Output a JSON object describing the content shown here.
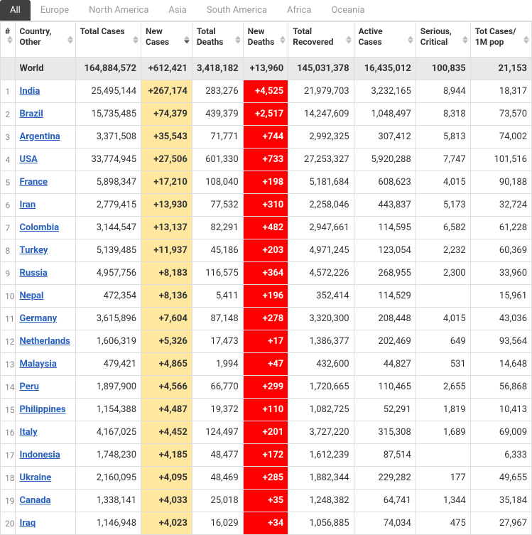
{
  "tabs": [
    "All",
    "Europe",
    "North America",
    "Asia",
    "South America",
    "Africa",
    "Oceania"
  ],
  "active_tab_index": 0,
  "sort_icon": {
    "inactive_color": "#bbbbbb",
    "active_color": "#555555"
  },
  "columns": [
    {
      "key": "idx",
      "label": "#",
      "sortable": true,
      "sorted": "none",
      "class": "col-idx"
    },
    {
      "key": "country",
      "label": "Country, Other",
      "sortable": true,
      "sorted": "none",
      "class": "col-country"
    },
    {
      "key": "total_cases",
      "label": "Total Cases",
      "sortable": true,
      "sorted": "none",
      "class": "col-tc"
    },
    {
      "key": "new_cases",
      "label": "New Cases",
      "sortable": true,
      "sorted": "desc",
      "class": "col-nc"
    },
    {
      "key": "total_deaths",
      "label": "Total Deaths",
      "sortable": true,
      "sorted": "none",
      "class": "col-td"
    },
    {
      "key": "new_deaths",
      "label": "New Deaths",
      "sortable": true,
      "sorted": "none",
      "class": "col-nd"
    },
    {
      "key": "total_recovered",
      "label": "Total Recovered",
      "sortable": true,
      "sorted": "none",
      "class": "col-tr"
    },
    {
      "key": "active",
      "label": "Active Cases",
      "sortable": true,
      "sorted": "none",
      "class": "col-ac"
    },
    {
      "key": "serious",
      "label": "Serious, Critical",
      "sortable": true,
      "sorted": "none",
      "class": "col-sc"
    },
    {
      "key": "per_m",
      "label": "Tot Cases/ 1M pop",
      "sortable": true,
      "sorted": "none",
      "class": "col-tpm"
    }
  ],
  "world_row": {
    "country": "World",
    "total_cases": "164,884,572",
    "new_cases": "+612,421",
    "total_deaths": "3,418,182",
    "new_deaths": "+13,960",
    "total_recovered": "145,031,378",
    "active": "16,435,012",
    "serious": "100,835",
    "per_m": "21,153"
  },
  "rows": [
    {
      "idx": "1",
      "country": "India",
      "total_cases": "25,495,144",
      "new_cases": "+267,174",
      "total_deaths": "283,276",
      "new_deaths": "+4,525",
      "total_recovered": "21,979,703",
      "active": "3,232,165",
      "serious": "8,944",
      "per_m": "18,317"
    },
    {
      "idx": "2",
      "country": "Brazil",
      "total_cases": "15,735,485",
      "new_cases": "+74,379",
      "total_deaths": "439,379",
      "new_deaths": "+2,517",
      "total_recovered": "14,247,609",
      "active": "1,048,497",
      "serious": "8,318",
      "per_m": "73,570"
    },
    {
      "idx": "3",
      "country": "Argentina",
      "total_cases": "3,371,508",
      "new_cases": "+35,543",
      "total_deaths": "71,771",
      "new_deaths": "+744",
      "total_recovered": "2,992,325",
      "active": "307,412",
      "serious": "5,813",
      "per_m": "74,002"
    },
    {
      "idx": "4",
      "country": "USA",
      "total_cases": "33,774,945",
      "new_cases": "+27,506",
      "total_deaths": "601,330",
      "new_deaths": "+733",
      "total_recovered": "27,253,327",
      "active": "5,920,288",
      "serious": "7,747",
      "per_m": "101,516"
    },
    {
      "idx": "5",
      "country": "France",
      "total_cases": "5,898,347",
      "new_cases": "+17,210",
      "total_deaths": "108,040",
      "new_deaths": "+198",
      "total_recovered": "5,181,684",
      "active": "608,623",
      "serious": "4,015",
      "per_m": "90,188"
    },
    {
      "idx": "6",
      "country": "Iran",
      "total_cases": "2,779,415",
      "new_cases": "+13,930",
      "total_deaths": "77,532",
      "new_deaths": "+310",
      "total_recovered": "2,258,046",
      "active": "443,837",
      "serious": "5,173",
      "per_m": "32,724"
    },
    {
      "idx": "7",
      "country": "Colombia",
      "total_cases": "3,144,547",
      "new_cases": "+13,137",
      "total_deaths": "82,291",
      "new_deaths": "+482",
      "total_recovered": "2,947,661",
      "active": "114,595",
      "serious": "6,582",
      "per_m": "61,228"
    },
    {
      "idx": "8",
      "country": "Turkey",
      "total_cases": "5,139,485",
      "new_cases": "+11,937",
      "total_deaths": "45,186",
      "new_deaths": "+203",
      "total_recovered": "4,971,245",
      "active": "123,054",
      "serious": "2,232",
      "per_m": "60,369"
    },
    {
      "idx": "9",
      "country": "Russia",
      "total_cases": "4,957,756",
      "new_cases": "+8,183",
      "total_deaths": "116,575",
      "new_deaths": "+364",
      "total_recovered": "4,572,226",
      "active": "268,955",
      "serious": "2,300",
      "per_m": "33,960"
    },
    {
      "idx": "10",
      "country": "Nepal",
      "total_cases": "472,354",
      "new_cases": "+8,136",
      "total_deaths": "5,411",
      "new_deaths": "+196",
      "total_recovered": "352,414",
      "active": "114,529",
      "serious": "",
      "per_m": "15,961"
    },
    {
      "idx": "11",
      "country": "Germany",
      "total_cases": "3,615,896",
      "new_cases": "+7,604",
      "total_deaths": "87,148",
      "new_deaths": "+278",
      "total_recovered": "3,320,300",
      "active": "208,448",
      "serious": "4,015",
      "per_m": "43,036"
    },
    {
      "idx": "12",
      "country": "Netherlands",
      "total_cases": "1,606,319",
      "new_cases": "+5,326",
      "total_deaths": "17,473",
      "new_deaths": "+17",
      "total_recovered": "1,386,377",
      "active": "202,469",
      "serious": "649",
      "per_m": "93,564"
    },
    {
      "idx": "13",
      "country": "Malaysia",
      "total_cases": "479,421",
      "new_cases": "+4,865",
      "total_deaths": "1,994",
      "new_deaths": "+47",
      "total_recovered": "432,600",
      "active": "44,827",
      "serious": "531",
      "per_m": "14,648"
    },
    {
      "idx": "14",
      "country": "Peru",
      "total_cases": "1,897,900",
      "new_cases": "+4,566",
      "total_deaths": "66,770",
      "new_deaths": "+299",
      "total_recovered": "1,720,665",
      "active": "110,465",
      "serious": "2,655",
      "per_m": "56,868"
    },
    {
      "idx": "15",
      "country": "Philippines",
      "total_cases": "1,154,388",
      "new_cases": "+4,487",
      "total_deaths": "19,372",
      "new_deaths": "+110",
      "total_recovered": "1,082,725",
      "active": "52,291",
      "serious": "1,819",
      "per_m": "10,413"
    },
    {
      "idx": "16",
      "country": "Italy",
      "total_cases": "4,167,025",
      "new_cases": "+4,452",
      "total_deaths": "124,497",
      "new_deaths": "+201",
      "total_recovered": "3,727,220",
      "active": "315,308",
      "serious": "1,689",
      "per_m": "69,009"
    },
    {
      "idx": "17",
      "country": "Indonesia",
      "total_cases": "1,748,230",
      "new_cases": "+4,185",
      "total_deaths": "48,477",
      "new_deaths": "+172",
      "total_recovered": "1,612,239",
      "active": "87,514",
      "serious": "",
      "per_m": "6,333"
    },
    {
      "idx": "18",
      "country": "Ukraine",
      "total_cases": "2,160,095",
      "new_cases": "+4,095",
      "total_deaths": "48,469",
      "new_deaths": "+285",
      "total_recovered": "1,882,344",
      "active": "229,282",
      "serious": "177",
      "per_m": "49,655"
    },
    {
      "idx": "19",
      "country": "Canada",
      "total_cases": "1,338,141",
      "new_cases": "+4,033",
      "total_deaths": "25,018",
      "new_deaths": "+35",
      "total_recovered": "1,248,382",
      "active": "64,741",
      "serious": "1,344",
      "per_m": "35,184"
    },
    {
      "idx": "20",
      "country": "Iraq",
      "total_cases": "1,146,948",
      "new_cases": "+4,023",
      "total_deaths": "16,029",
      "new_deaths": "+34",
      "total_recovered": "1,056,885",
      "active": "74,034",
      "serious": "475",
      "per_m": "27,967"
    }
  ],
  "highlight": {
    "new_cases_bg": "#ffe7a0",
    "new_deaths_bg": "#ff0000",
    "new_deaths_fg": "#ffffff",
    "world_row_bg": "#e9e9e9",
    "link_color": "#2962bd"
  }
}
